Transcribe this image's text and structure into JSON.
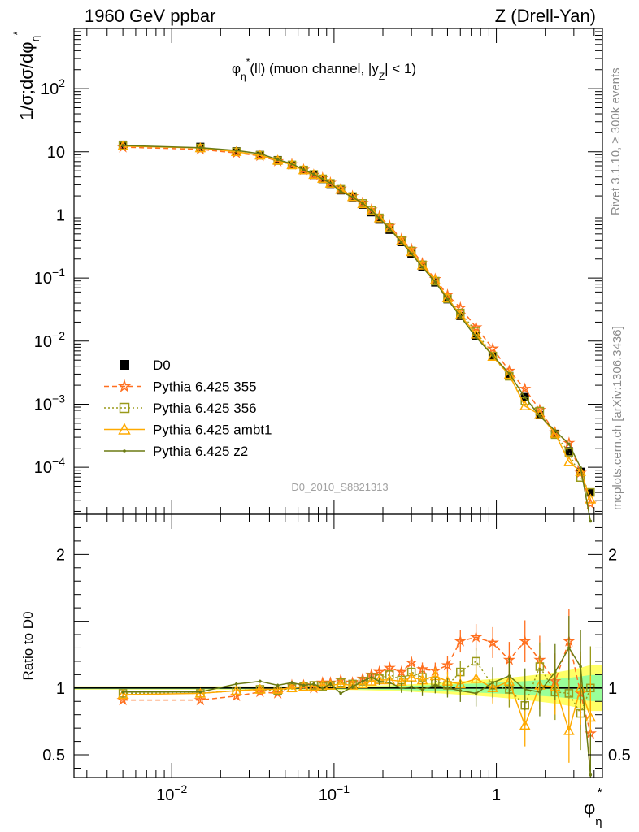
{
  "header": {
    "left": "1960 GeV ppbar",
    "right": "Z (Drell-Yan)",
    "panel_title": "φη*(ll) (muon channel, |yZ| < 1)",
    "watermark": "D0_2010_S8821313",
    "side_rivet": "Rivet 3.1.10, ≥ 300k events",
    "side_mcplots": "mcplots.cern.ch [arXiv:1306.3436]"
  },
  "chart_data": {
    "type": "line",
    "xscale": "log",
    "xlim": [
      0.0025,
      4.5
    ],
    "xlabel": "φη*",
    "main": {
      "ylabel": "1/σ;dσ/dφη*",
      "yscale": "log",
      "ylim": [
        1.8e-05,
        900
      ],
      "ytick_labels": [
        "10^-4",
        "10^-3",
        "10^-2",
        "10^-1",
        "1",
        "10",
        "10^2"
      ]
    },
    "ratio": {
      "ylabel": "Ratio to D0",
      "ylim": [
        0.33,
        2.3
      ],
      "ytick_labels": [
        "0.5",
        "1",
        "2"
      ]
    },
    "x": [
      0.005,
      0.015,
      0.025,
      0.035,
      0.045,
      0.055,
      0.065,
      0.075,
      0.085,
      0.095,
      0.11,
      0.13,
      0.15,
      0.17,
      0.19,
      0.22,
      0.26,
      0.3,
      0.35,
      0.42,
      0.5,
      0.6,
      0.75,
      0.95,
      1.2,
      1.5,
      1.85,
      2.3,
      2.8,
      3.3,
      3.8
    ],
    "x_tick_labels": [
      "10^-2",
      "10^-1",
      "1"
    ],
    "band": {
      "inner_color": "#99ff99",
      "outer_color": "#ffff66"
    },
    "series": [
      {
        "name": "D0",
        "color": "#000000",
        "marker": "square",
        "line": "none",
        "values": [
          13.0,
          12.0,
          10.2,
          8.9,
          7.4,
          6.2,
          5.1,
          4.3,
          3.7,
          3.1,
          2.45,
          1.9,
          1.45,
          1.1,
          0.84,
          0.58,
          0.37,
          0.24,
          0.15,
          0.085,
          0.046,
          0.025,
          0.012,
          0.0057,
          0.0028,
          0.0013,
          0.00067,
          0.00034,
          0.00018,
          8.5e-05,
          4e-05
        ]
      },
      {
        "name": "Pythia 6.425 355",
        "color": "#ff6f1f",
        "marker": "star",
        "line": "dashed",
        "ratio": [
          0.91,
          0.91,
          0.94,
          0.97,
          0.96,
          1.02,
          1.02,
          1.0,
          1.04,
          1.04,
          1.06,
          1.04,
          1.07,
          1.1,
          1.12,
          1.15,
          1.12,
          1.19,
          1.14,
          1.13,
          1.17,
          1.35,
          1.38,
          1.34,
          1.21,
          1.35,
          1.21,
          1.05,
          1.35,
          0.96,
          0.66
        ]
      },
      {
        "name": "Pythia 6.425 356",
        "color": "#9a9a1a",
        "marker": "open-square",
        "line": "dotted",
        "ratio": [
          0.96,
          0.96,
          0.98,
          0.99,
          0.98,
          1.0,
          1.01,
          1.02,
          1.01,
          1.02,
          1.04,
          1.03,
          1.05,
          1.08,
          1.07,
          1.1,
          1.06,
          1.12,
          1.08,
          1.05,
          1.02,
          1.12,
          1.2,
          1.02,
          0.99,
          0.87,
          1.16,
          0.97,
          0.96,
          0.81,
          1.0
        ]
      },
      {
        "name": "Pythia 6.425 ambt1",
        "color": "#ffaa00",
        "marker": "triangle",
        "line": "solid",
        "ratio": [
          0.95,
          0.96,
          0.98,
          0.99,
          0.99,
          1.0,
          1.01,
          1.01,
          1.02,
          1.02,
          1.03,
          1.02,
          1.03,
          1.05,
          1.06,
          1.06,
          1.05,
          1.08,
          1.06,
          1.09,
          1.05,
          1.03,
          1.07,
          1.0,
          1.05,
          0.72,
          1.02,
          1.01,
          0.68,
          1.0,
          0.78
        ]
      },
      {
        "name": "Pythia 6.425 z2",
        "color": "#6b7a12",
        "marker": "dot",
        "line": "solid",
        "ratio": [
          0.97,
          0.97,
          1.03,
          1.05,
          1.02,
          1.04,
          1.02,
          1.03,
          1.0,
          1.03,
          0.96,
          1.01,
          1.05,
          1.08,
          1.05,
          1.04,
          1.0,
          1.01,
          0.99,
          1.02,
          1.0,
          0.98,
          0.96,
          1.04,
          1.09,
          0.99,
          0.97,
          1.12,
          1.3,
          1.16,
          0.35
        ]
      }
    ]
  }
}
